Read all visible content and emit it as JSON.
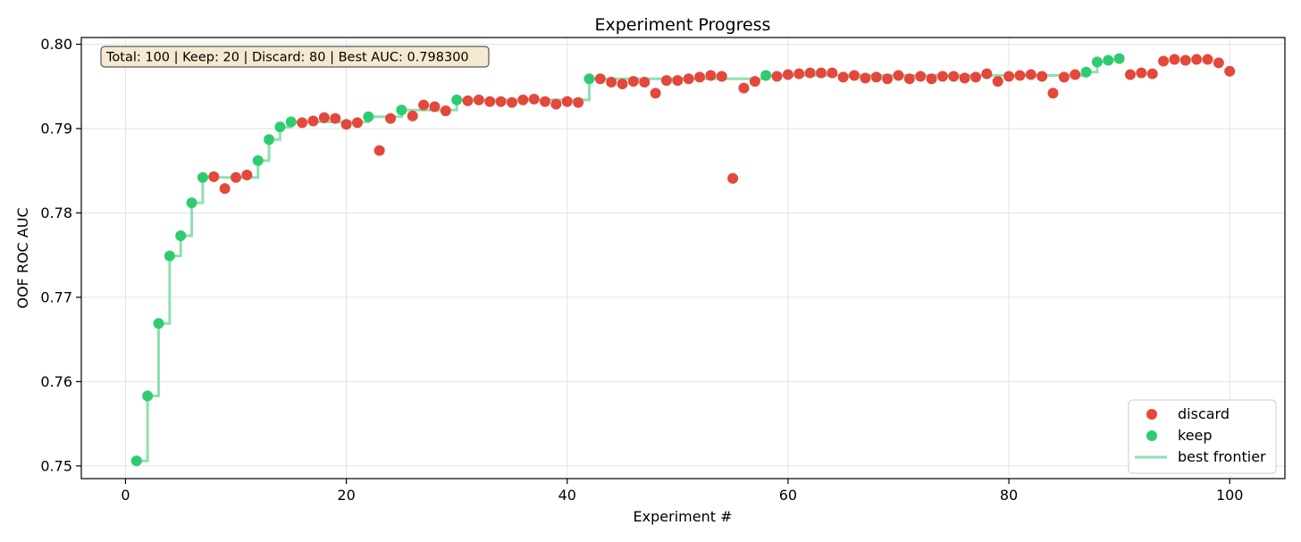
{
  "chart_data": {
    "type": "scatter",
    "title": "Experiment Progress",
    "xlabel": "Experiment #",
    "ylabel": "OOF ROC AUC",
    "xlim": [
      -4,
      105
    ],
    "ylim": [
      0.7485,
      0.8008
    ],
    "xticks": [
      0,
      20,
      40,
      60,
      80,
      100
    ],
    "yticks": [
      0.75,
      0.76,
      0.77,
      0.78,
      0.79,
      0.8
    ],
    "ytick_labels": [
      "0.75",
      "0.76",
      "0.77",
      "0.78",
      "0.79",
      "0.80"
    ],
    "grid": true,
    "legend_position": "bottom-right",
    "summary_box": "Total: 100 | Keep: 20 | Discard: 80 | Best AUC: 0.798300",
    "colors": {
      "discard": "#e3483a",
      "keep": "#2ecc71",
      "frontier": "#8fe0b0"
    },
    "series": [
      {
        "name": "discard",
        "points": [
          [
            8,
            0.7843
          ],
          [
            9,
            0.7829
          ],
          [
            10,
            0.7842
          ],
          [
            11,
            0.7845
          ],
          [
            16,
            0.7907
          ],
          [
            17,
            0.7909
          ],
          [
            18,
            0.7913
          ],
          [
            19,
            0.7912
          ],
          [
            20,
            0.7905
          ],
          [
            21,
            0.7907
          ],
          [
            23,
            0.7874
          ],
          [
            24,
            0.7912
          ],
          [
            26,
            0.7915
          ],
          [
            27,
            0.7928
          ],
          [
            28,
            0.7926
          ],
          [
            29,
            0.7921
          ],
          [
            31,
            0.7933
          ],
          [
            32,
            0.7934
          ],
          [
            33,
            0.7932
          ],
          [
            34,
            0.7932
          ],
          [
            35,
            0.7931
          ],
          [
            36,
            0.7934
          ],
          [
            37,
            0.7935
          ],
          [
            38,
            0.7932
          ],
          [
            39,
            0.7929
          ],
          [
            40,
            0.7932
          ],
          [
            41,
            0.7931
          ],
          [
            43,
            0.7959
          ],
          [
            44,
            0.7955
          ],
          [
            45,
            0.7953
          ],
          [
            46,
            0.7956
          ],
          [
            47,
            0.7955
          ],
          [
            48,
            0.7942
          ],
          [
            49,
            0.7957
          ],
          [
            50,
            0.7957
          ],
          [
            51,
            0.7959
          ],
          [
            52,
            0.7961
          ],
          [
            53,
            0.7963
          ],
          [
            54,
            0.7962
          ],
          [
            55,
            0.7841
          ],
          [
            56,
            0.7948
          ],
          [
            57,
            0.7956
          ],
          [
            59,
            0.7962
          ],
          [
            60,
            0.7964
          ],
          [
            61,
            0.7965
          ],
          [
            62,
            0.7966
          ],
          [
            63,
            0.7966
          ],
          [
            64,
            0.7966
          ],
          [
            65,
            0.7961
          ],
          [
            66,
            0.7963
          ],
          [
            67,
            0.796
          ],
          [
            68,
            0.7961
          ],
          [
            69,
            0.7959
          ],
          [
            70,
            0.7963
          ],
          [
            71,
            0.7959
          ],
          [
            72,
            0.7962
          ],
          [
            73,
            0.7959
          ],
          [
            74,
            0.7962
          ],
          [
            75,
            0.7962
          ],
          [
            76,
            0.796
          ],
          [
            77,
            0.7961
          ],
          [
            78,
            0.7965
          ],
          [
            79,
            0.7956
          ],
          [
            80,
            0.7962
          ],
          [
            81,
            0.7963
          ],
          [
            82,
            0.7964
          ],
          [
            83,
            0.7962
          ],
          [
            84,
            0.7942
          ],
          [
            85,
            0.7961
          ],
          [
            86,
            0.7964
          ],
          [
            91,
            0.7964
          ],
          [
            92,
            0.7966
          ],
          [
            93,
            0.7965
          ],
          [
            94,
            0.798
          ],
          [
            95,
            0.7982
          ],
          [
            96,
            0.7981
          ],
          [
            97,
            0.7982
          ],
          [
            98,
            0.7982
          ],
          [
            99,
            0.7978
          ],
          [
            100,
            0.7968
          ]
        ]
      },
      {
        "name": "keep",
        "points": [
          [
            1,
            0.7506
          ],
          [
            2,
            0.7583
          ],
          [
            3,
            0.7669
          ],
          [
            4,
            0.7749
          ],
          [
            5,
            0.7773
          ],
          [
            6,
            0.7812
          ],
          [
            7,
            0.7842
          ],
          [
            12,
            0.7862
          ],
          [
            13,
            0.7887
          ],
          [
            14,
            0.7902
          ],
          [
            15,
            0.7908
          ],
          [
            22,
            0.7914
          ],
          [
            25,
            0.7922
          ],
          [
            30,
            0.7934
          ],
          [
            42,
            0.7959
          ],
          [
            58,
            0.7963
          ],
          [
            87,
            0.7967
          ],
          [
            88,
            0.7979
          ],
          [
            89,
            0.7981
          ],
          [
            90,
            0.7983
          ]
        ]
      },
      {
        "name": "best frontier",
        "type": "step",
        "points": [
          [
            1,
            0.7506
          ],
          [
            2,
            0.7583
          ],
          [
            3,
            0.7669
          ],
          [
            4,
            0.7749
          ],
          [
            5,
            0.7773
          ],
          [
            6,
            0.7812
          ],
          [
            7,
            0.7842
          ],
          [
            12,
            0.7862
          ],
          [
            13,
            0.7887
          ],
          [
            14,
            0.7902
          ],
          [
            15,
            0.7908
          ],
          [
            22,
            0.7914
          ],
          [
            25,
            0.7922
          ],
          [
            30,
            0.7934
          ],
          [
            42,
            0.7959
          ],
          [
            58,
            0.7963
          ],
          [
            87,
            0.7967
          ],
          [
            88,
            0.7979
          ],
          [
            89,
            0.7981
          ],
          [
            90,
            0.7983
          ]
        ]
      }
    ]
  }
}
